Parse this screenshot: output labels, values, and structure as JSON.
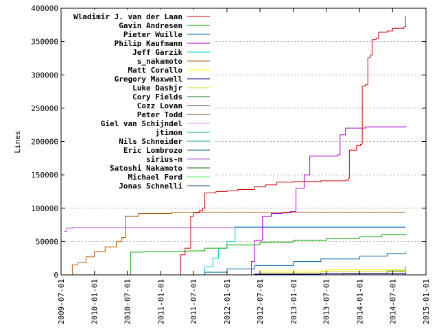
{
  "chart_data": {
    "type": "line",
    "title": "",
    "xlabel": "",
    "ylabel": "Lines",
    "x_type": "date",
    "xlim": [
      "2009-07-01",
      "2015-01-01"
    ],
    "ylim": [
      0,
      400000
    ],
    "yticks": [
      0,
      50000,
      100000,
      150000,
      200000,
      250000,
      300000,
      350000,
      400000
    ],
    "xticks": [
      "2009-07-01",
      "2010-01-01",
      "2010-07-01",
      "2011-01-01",
      "2011-07-01",
      "2012-01-01",
      "2012-07-01",
      "2013-01-01",
      "2013-07-01",
      "2014-01-01",
      "2014-07-01",
      "2015-01-01"
    ],
    "grid": "horizontal-dotted",
    "legend_position": "top-left",
    "series": [
      {
        "name": "Wladimir J. van der Laan",
        "color": "#cc0000",
        "points": [
          [
            "2011-04-15",
            0
          ],
          [
            "2011-04-20",
            30000
          ],
          [
            "2011-05-15",
            40000
          ],
          [
            "2011-06-15",
            88000
          ],
          [
            "2011-07-01",
            93000
          ],
          [
            "2011-08-01",
            96000
          ],
          [
            "2011-08-20",
            100000
          ],
          [
            "2011-09-01",
            123000
          ],
          [
            "2011-11-01",
            125000
          ],
          [
            "2012-01-01",
            126000
          ],
          [
            "2012-03-01",
            128000
          ],
          [
            "2012-06-01",
            132000
          ],
          [
            "2012-08-01",
            135000
          ],
          [
            "2012-10-01",
            139000
          ],
          [
            "2013-01-01",
            140000
          ],
          [
            "2013-06-01",
            141000
          ],
          [
            "2013-10-15",
            142000
          ],
          [
            "2013-11-01",
            145000
          ],
          [
            "2013-11-05",
            187000
          ],
          [
            "2013-12-15",
            194000
          ],
          [
            "2014-01-05",
            196000
          ],
          [
            "2014-01-15",
            283000
          ],
          [
            "2014-02-01",
            285000
          ],
          [
            "2014-02-15",
            326000
          ],
          [
            "2014-03-01",
            330000
          ],
          [
            "2014-03-10",
            353000
          ],
          [
            "2014-04-01",
            355000
          ],
          [
            "2014-04-15",
            364000
          ],
          [
            "2014-06-01",
            366000
          ],
          [
            "2014-07-01",
            370000
          ],
          [
            "2014-09-01",
            372000
          ],
          [
            "2014-09-10",
            388000
          ]
        ]
      },
      {
        "name": "Gavin Andresen",
        "color": "#00aa00",
        "points": [
          [
            "2010-07-15",
            0
          ],
          [
            "2010-07-20",
            34000
          ],
          [
            "2010-10-01",
            35000
          ],
          [
            "2011-01-01",
            35000
          ],
          [
            "2011-06-01",
            36000
          ],
          [
            "2011-09-01",
            40000
          ],
          [
            "2012-01-01",
            45000
          ],
          [
            "2012-07-01",
            49000
          ],
          [
            "2013-01-01",
            52000
          ],
          [
            "2013-07-01",
            55000
          ],
          [
            "2014-01-01",
            57000
          ],
          [
            "2014-05-01",
            60000
          ],
          [
            "2014-09-10",
            62000
          ]
        ]
      },
      {
        "name": "Pieter Wuille",
        "color": "#0066aa",
        "points": [
          [
            "2011-06-01",
            0
          ],
          [
            "2011-09-01",
            4000
          ],
          [
            "2012-01-01",
            9000
          ],
          [
            "2012-06-01",
            14000
          ],
          [
            "2013-01-01",
            20000
          ],
          [
            "2013-06-01",
            24000
          ],
          [
            "2014-01-01",
            28000
          ],
          [
            "2014-06-01",
            32000
          ],
          [
            "2014-09-10",
            35000
          ]
        ]
      },
      {
        "name": "Philip Kaufmann",
        "color": "#aa00cc",
        "points": [
          [
            "2012-05-01",
            0
          ],
          [
            "2012-05-15",
            20000
          ],
          [
            "2012-06-01",
            52000
          ],
          [
            "2012-07-15",
            88000
          ],
          [
            "2012-09-01",
            92000
          ],
          [
            "2012-11-01",
            93000
          ],
          [
            "2012-12-15",
            95000
          ],
          [
            "2013-01-15",
            130000
          ],
          [
            "2013-03-01",
            150000
          ],
          [
            "2013-04-01",
            178000
          ],
          [
            "2013-09-01",
            180000
          ],
          [
            "2013-09-15",
            210000
          ],
          [
            "2013-10-15",
            220000
          ],
          [
            "2014-02-01",
            222000
          ],
          [
            "2014-09-10",
            224000
          ]
        ]
      },
      {
        "name": "Jeff Garzik",
        "color": "#00cccc",
        "points": [
          [
            "2011-08-01",
            0
          ],
          [
            "2011-09-01",
            12000
          ],
          [
            "2011-10-15",
            25000
          ],
          [
            "2011-11-15",
            40000
          ],
          [
            "2012-01-01",
            50000
          ],
          [
            "2012-02-15",
            72000
          ],
          [
            "2014-09-10",
            72000
          ]
        ]
      },
      {
        "name": "s_nakamoto",
        "color": "#b05000",
        "points": [
          [
            "2009-08-01",
            0
          ],
          [
            "2009-09-01",
            15000
          ],
          [
            "2009-10-01",
            18000
          ],
          [
            "2009-11-15",
            27000
          ],
          [
            "2010-01-01",
            35000
          ],
          [
            "2010-03-01",
            42000
          ],
          [
            "2010-05-01",
            50000
          ],
          [
            "2010-06-01",
            56000
          ],
          [
            "2010-06-20",
            88000
          ],
          [
            "2010-09-01",
            92000
          ],
          [
            "2011-03-01",
            94000
          ],
          [
            "2014-09-10",
            94000
          ]
        ]
      },
      {
        "name": "Matt Corallo",
        "color": "#ffff00",
        "points": [
          [
            "2011-06-01",
            0
          ],
          [
            "2012-07-01",
            6000
          ],
          [
            "2013-07-01",
            8000
          ],
          [
            "2014-09-10",
            9000
          ]
        ]
      },
      {
        "name": "Gregory Maxwell",
        "color": "#000088",
        "points": [
          [
            "2011-05-01",
            0
          ],
          [
            "2012-06-01",
            1000
          ],
          [
            "2013-06-01",
            1800
          ],
          [
            "2014-09-10",
            2500
          ]
        ]
      },
      {
        "name": "Luke Dashjr",
        "color": "#dddd00",
        "points": [
          [
            "2011-03-01",
            0
          ],
          [
            "2012-07-01",
            3000
          ],
          [
            "2013-06-01",
            5000
          ],
          [
            "2014-09-10",
            6000
          ]
        ]
      },
      {
        "name": "Cory Fields",
        "color": "#007700",
        "points": [
          [
            "2013-01-01",
            0
          ],
          [
            "2013-10-01",
            2000
          ],
          [
            "2014-06-01",
            6000
          ],
          [
            "2014-09-10",
            12000
          ]
        ]
      },
      {
        "name": "Cozz Lovan",
        "color": "#334433",
        "points": [
          [
            "2013-06-01",
            0
          ],
          [
            "2014-09-10",
            3000
          ]
        ]
      },
      {
        "name": "Peter Todd",
        "color": "#774400",
        "points": [
          [
            "2012-06-01",
            0
          ],
          [
            "2014-09-10",
            3500
          ]
        ]
      },
      {
        "name": "Giel van Schijndel",
        "color": "#dd88dd",
        "points": [
          [
            "2011-06-01",
            0
          ],
          [
            "2012-06-01",
            1200
          ],
          [
            "2014-09-10",
            1500
          ]
        ]
      },
      {
        "name": "jtimon",
        "color": "#00bb66",
        "points": [
          [
            "2013-06-01",
            0
          ],
          [
            "2014-09-10",
            4000
          ]
        ]
      },
      {
        "name": "Nils Schneider",
        "color": "#009999",
        "points": [
          [
            "2011-08-01",
            0
          ],
          [
            "2014-09-10",
            900
          ]
        ]
      },
      {
        "name": "Eric Lombrozo",
        "color": "#005577",
        "points": [
          [
            "2012-08-01",
            0
          ],
          [
            "2014-09-10",
            1000
          ]
        ]
      },
      {
        "name": "sirius-m",
        "color": "#aa44cc",
        "points": [
          [
            "2009-07-15",
            65000
          ],
          [
            "2009-08-01",
            70000
          ],
          [
            "2009-09-01",
            71000
          ],
          [
            "2014-09-10",
            71000
          ]
        ]
      },
      {
        "name": "Satoshi Nakamoto",
        "color": "#006600",
        "points": [
          [
            "2009-08-01",
            0
          ],
          [
            "2014-09-10",
            500
          ]
        ]
      },
      {
        "name": "Michael Ford",
        "color": "#55ee55",
        "points": [
          [
            "2013-10-01",
            0
          ],
          [
            "2014-09-10",
            1500
          ]
        ]
      },
      {
        "name": "Jonas Schnelli",
        "color": "#224488",
        "points": [
          [
            "2014-06-01",
            0
          ],
          [
            "2014-09-10",
            700
          ]
        ]
      }
    ]
  }
}
